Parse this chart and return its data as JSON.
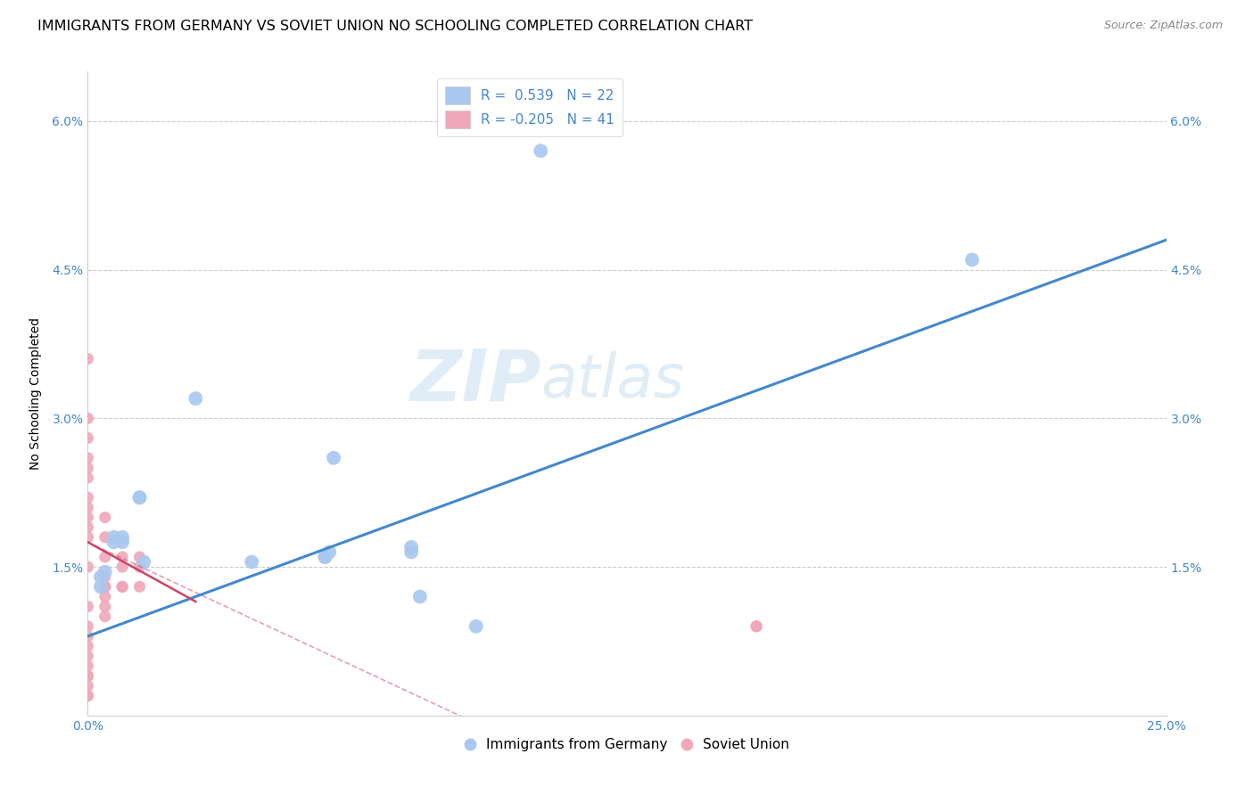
{
  "title": "IMMIGRANTS FROM GERMANY VS SOVIET UNION NO SCHOOLING COMPLETED CORRELATION CHART",
  "source": "Source: ZipAtlas.com",
  "ylabel": "No Schooling Completed",
  "xlim": [
    0.0,
    0.25
  ],
  "ylim": [
    0.0,
    0.065
  ],
  "yticks": [
    0.015,
    0.03,
    0.045,
    0.06
  ],
  "ytick_labels": [
    "1.5%",
    "3.0%",
    "4.5%",
    "6.0%"
  ],
  "xticks": [
    0.0,
    0.05,
    0.1,
    0.15,
    0.2,
    0.25
  ],
  "xtick_labels": [
    "0.0%",
    "",
    "",
    "",
    "",
    "25.0%"
  ],
  "watermark": "ZIPatlas",
  "legend1_label": "R =  0.539   N = 22",
  "legend2_label": "R = -0.205   N = 41",
  "legend_bottom1": "Immigrants from Germany",
  "legend_bottom2": "Soviet Union",
  "germany_color": "#a8c8f0",
  "soviet_color": "#f0a8b8",
  "germany_line_color": "#4488cc",
  "soviet_line_color": "#cc4466",
  "background_color": "#ffffff",
  "grid_color": "#cccccc",
  "germany_points_x": [
    0.003,
    0.003,
    0.004,
    0.006,
    0.006,
    0.008,
    0.008,
    0.012,
    0.012,
    0.013,
    0.025,
    0.038,
    0.055,
    0.055,
    0.056,
    0.057,
    0.075,
    0.075,
    0.077,
    0.09,
    0.105,
    0.205
  ],
  "germany_points_y": [
    0.013,
    0.014,
    0.0145,
    0.0175,
    0.018,
    0.0175,
    0.018,
    0.022,
    0.022,
    0.0155,
    0.032,
    0.0155,
    0.016,
    0.016,
    0.0165,
    0.026,
    0.0165,
    0.017,
    0.012,
    0.009,
    0.057,
    0.046
  ],
  "soviet_points_x": [
    0.0,
    0.0,
    0.0,
    0.0,
    0.0,
    0.0,
    0.0,
    0.0,
    0.0,
    0.0,
    0.0,
    0.0,
    0.0,
    0.0,
    0.0,
    0.0,
    0.0,
    0.0,
    0.0,
    0.0,
    0.0,
    0.0,
    0.0,
    0.004,
    0.004,
    0.004,
    0.004,
    0.004,
    0.004,
    0.004,
    0.004,
    0.004,
    0.008,
    0.008,
    0.008,
    0.008,
    0.012,
    0.012,
    0.012,
    0.155,
    0.155
  ],
  "soviet_points_y": [
    0.036,
    0.03,
    0.028,
    0.026,
    0.025,
    0.024,
    0.022,
    0.021,
    0.02,
    0.019,
    0.018,
    0.015,
    0.011,
    0.009,
    0.008,
    0.007,
    0.006,
    0.005,
    0.004,
    0.004,
    0.003,
    0.002,
    0.002,
    0.02,
    0.018,
    0.016,
    0.014,
    0.013,
    0.013,
    0.012,
    0.011,
    0.01,
    0.016,
    0.015,
    0.013,
    0.013,
    0.016,
    0.015,
    0.013,
    0.009,
    0.009
  ],
  "germany_marker_size": 130,
  "soviet_marker_size": 90,
  "title_fontsize": 11.5,
  "axis_fontsize": 10,
  "tick_fontsize": 10,
  "legend_fontsize": 11
}
